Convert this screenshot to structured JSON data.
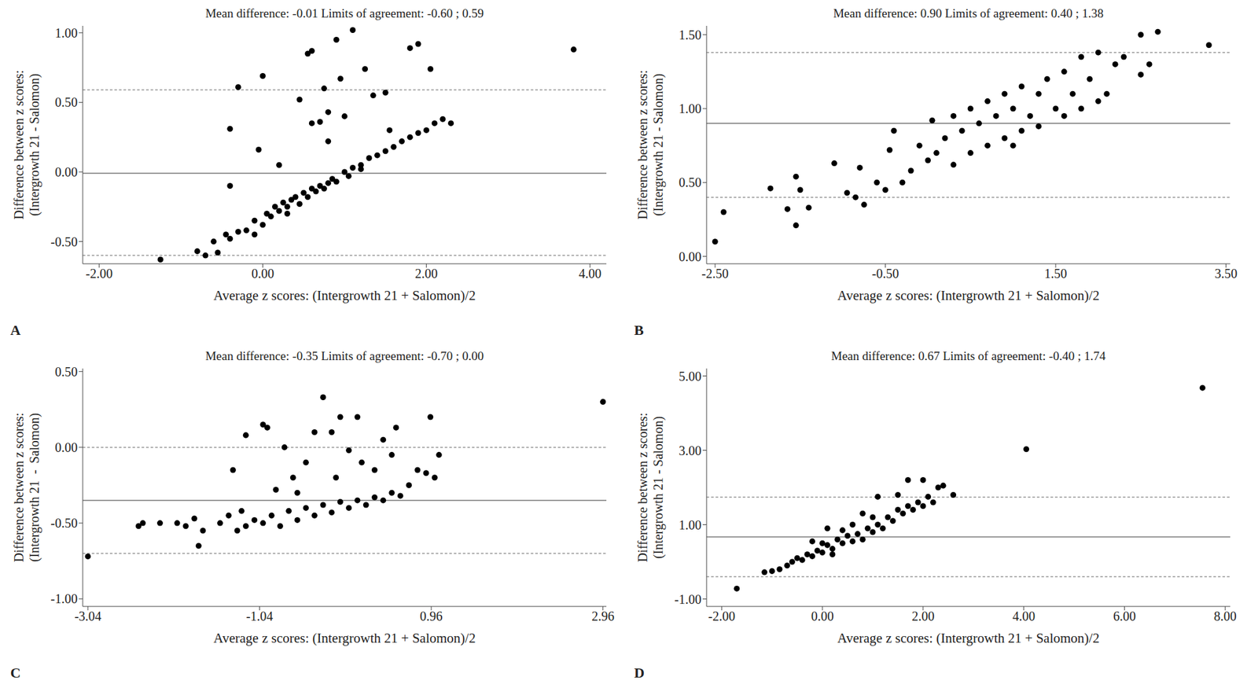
{
  "chart_data": [
    {
      "type": "scatter",
      "panel_label": "A",
      "title": "Mean difference: -0.01 Limits of agreement: -0.60 ; 0.59",
      "x_label": "Average z scores: (Intergrowth 21 + Salomon)/2",
      "y_label": [
        "Difference between z scores:",
        "(Intergrowth 21 - Salomon)"
      ],
      "mean_difference": -0.01,
      "limits_of_agreement": [
        -0.6,
        0.59
      ],
      "xlim": [
        -2.2,
        4.2
      ],
      "xticks": [
        {
          "value": -2,
          "label": "-2.00"
        },
        {
          "value": 0,
          "label": "0.00"
        },
        {
          "value": 2,
          "label": "2.00"
        },
        {
          "value": 4,
          "label": "4.00"
        }
      ],
      "ylim": [
        -0.66,
        1.05
      ],
      "yticks": [
        {
          "value": -0.5,
          "label": "-0.50"
        },
        {
          "value": 0,
          "label": "0.00"
        },
        {
          "value": 0.5,
          "label": "0.50"
        },
        {
          "value": 1,
          "label": "1.00"
        }
      ],
      "grid": false,
      "marker": "circle",
      "color": "#000000",
      "x": [
        -1.25,
        -0.8,
        -0.7,
        -0.6,
        -0.55,
        -0.45,
        -0.4,
        -0.3,
        -0.2,
        -0.1,
        0,
        0.05,
        0.1,
        0.15,
        0.2,
        0.25,
        0.3,
        0.35,
        0.4,
        0.45,
        0.5,
        0.55,
        0.6,
        0.65,
        0.7,
        0.75,
        0.8,
        0.85,
        0.9,
        1.0,
        1.05,
        1.1,
        1.2,
        1.3,
        1.4,
        1.5,
        1.6,
        1.7,
        1.8,
        1.9,
        2.0,
        2.1,
        2.2,
        2.3,
        1.2,
        0.3,
        -0.1,
        -0.4,
        -0.4,
        -0.3,
        -0.05,
        0.0,
        0.2,
        0.45,
        0.55,
        0.6,
        0.7,
        0.75,
        0.9,
        0.95,
        0.8,
        1.0,
        1.1,
        1.25,
        1.35,
        1.5,
        1.55,
        1.8,
        1.9,
        2.05,
        3.8,
        0.6,
        0.8
      ],
      "values": [
        -0.63,
        -0.57,
        -0.6,
        -0.5,
        -0.58,
        -0.45,
        -0.48,
        -0.43,
        -0.42,
        -0.35,
        -0.38,
        -0.3,
        -0.32,
        -0.25,
        -0.28,
        -0.22,
        -0.25,
        -0.2,
        -0.18,
        -0.23,
        -0.15,
        -0.18,
        -0.12,
        -0.14,
        -0.1,
        -0.12,
        -0.08,
        -0.05,
        -0.07,
        0.0,
        -0.03,
        0.03,
        0.05,
        0.1,
        0.12,
        0.15,
        0.18,
        0.22,
        0.25,
        0.28,
        0.3,
        0.35,
        0.38,
        0.35,
        0.02,
        -0.3,
        -0.45,
        -0.1,
        0.31,
        0.61,
        0.16,
        0.69,
        0.05,
        0.52,
        0.85,
        0.87,
        0.36,
        0.6,
        0.95,
        0.67,
        0.22,
        0.4,
        1.02,
        0.74,
        0.55,
        0.57,
        0.3,
        0.89,
        0.92,
        0.74,
        0.88,
        0.35,
        0.43
      ]
    },
    {
      "type": "scatter",
      "panel_label": "B",
      "title": "Mean difference: 0.90 Limits of agreement: 0.40 ; 1.38",
      "x_label": "Average  z scores: (Intergrowth 21 + Salomon)/2",
      "y_label": [
        "Difference between z scores:",
        "(Intergrowth 21 - Salomon)"
      ],
      "mean_difference": 0.9,
      "limits_of_agreement": [
        0.4,
        1.38
      ],
      "xlim": [
        -2.6,
        3.55
      ],
      "xticks": [
        {
          "value": -2.5,
          "label": "-2.50"
        },
        {
          "value": -0.5,
          "label": "-0.50"
        },
        {
          "value": 1.5,
          "label": "1.50"
        },
        {
          "value": 3.5,
          "label": "3.50"
        }
      ],
      "ylim": [
        -0.05,
        1.56
      ],
      "yticks": [
        {
          "value": 0,
          "label": "0.00"
        },
        {
          "value": 0.5,
          "label": "0.50"
        },
        {
          "value": 1,
          "label": "1.00"
        },
        {
          "value": 1.5,
          "label": "1.50"
        }
      ],
      "grid": false,
      "marker": "circle",
      "color": "#000000",
      "x": [
        -2.5,
        -2.4,
        -1.85,
        -1.65,
        -1.55,
        -1.55,
        -1.5,
        -1.4,
        -1.1,
        -0.95,
        -0.85,
        -0.8,
        -0.75,
        -0.6,
        -0.5,
        -0.45,
        -0.4,
        -0.3,
        -0.2,
        -0.1,
        0,
        0.05,
        0.1,
        0.2,
        0.3,
        0.3,
        0.4,
        0.5,
        0.5,
        0.6,
        0.7,
        0.7,
        0.8,
        0.9,
        0.9,
        1.0,
        1.1,
        1.1,
        1.2,
        1.3,
        1.3,
        1.4,
        1.5,
        1.6,
        1.6,
        1.7,
        1.8,
        1.8,
        1.9,
        2.0,
        2.1,
        2.2,
        2.3,
        2.5,
        2.6,
        2.7,
        2.5,
        3.3,
        2.0,
        1.0
      ],
      "values": [
        0.1,
        0.3,
        0.46,
        0.32,
        0.21,
        0.54,
        0.45,
        0.33,
        0.63,
        0.43,
        0.4,
        0.6,
        0.35,
        0.5,
        0.45,
        0.72,
        0.85,
        0.5,
        0.58,
        0.75,
        0.65,
        0.92,
        0.7,
        0.8,
        0.95,
        0.62,
        0.85,
        1.0,
        0.7,
        0.9,
        1.05,
        0.75,
        0.95,
        1.1,
        0.8,
        1.0,
        0.85,
        1.15,
        0.95,
        1.1,
        0.88,
        1.2,
        1.0,
        1.25,
        0.95,
        1.1,
        1.35,
        1.0,
        1.2,
        1.38,
        1.1,
        1.3,
        1.35,
        1.5,
        1.3,
        1.52,
        1.23,
        1.43,
        1.05,
        0.75
      ]
    },
    {
      "type": "scatter",
      "panel_label": "C",
      "title": "Mean difference: -0.35 Limits of agreement: -0.70 ; 0.00",
      "x_label": "Average z scores: (Intergrowth 21 + Salomon)/2",
      "y_label": [
        "Difference between z scores:",
        "(Intergrowth 21  -  Salomon)"
      ],
      "mean_difference": -0.35,
      "limits_of_agreement": [
        -0.7,
        0.0
      ],
      "xlim": [
        -3.1,
        3.0
      ],
      "xticks": [
        -3.04,
        -1.04,
        0.96,
        2.96
      ],
      "ylim": [
        -1.05,
        0.52
      ],
      "yticks": [
        {
          "value": -1,
          "label": "-1.00"
        },
        {
          "value": -0.5,
          "label": "-0.50"
        },
        {
          "value": 0,
          "label": "0.00"
        },
        {
          "value": 0.5,
          "label": "0.50"
        }
      ],
      "grid": false,
      "marker": "circle",
      "color": "#000000",
      "x": [
        -3.04,
        -2.45,
        -2.4,
        -2.2,
        -2.0,
        -1.9,
        -1.8,
        -1.75,
        -1.7,
        -1.5,
        -1.4,
        -1.3,
        -1.25,
        -1.2,
        -1.1,
        -1.0,
        -0.9,
        -0.8,
        -0.7,
        -0.6,
        -0.5,
        -0.4,
        -0.3,
        -0.2,
        -0.1,
        0,
        0.1,
        0.2,
        0.3,
        0.4,
        0.5,
        0.6,
        0.8,
        0.9,
        1.0,
        1.05,
        -1.35,
        -1.2,
        -1.0,
        -0.95,
        -0.85,
        -0.75,
        -0.65,
        -0.5,
        -0.4,
        -0.3,
        -0.2,
        -0.1,
        0.0,
        0.1,
        0.15,
        0.3,
        0.4,
        0.5,
        0.55,
        0.7,
        0.95,
        2.96,
        -0.6,
        -0.15
      ],
      "values": [
        -0.72,
        -0.52,
        -0.5,
        -0.5,
        -0.5,
        -0.52,
        -0.47,
        -0.65,
        -0.55,
        -0.5,
        -0.45,
        -0.55,
        -0.42,
        -0.52,
        -0.48,
        -0.5,
        -0.45,
        -0.52,
        -0.42,
        -0.48,
        -0.4,
        -0.45,
        -0.38,
        -0.43,
        -0.36,
        -0.4,
        -0.35,
        -0.38,
        -0.33,
        -0.35,
        -0.3,
        -0.32,
        -0.15,
        -0.17,
        -0.2,
        -0.05,
        -0.15,
        0.08,
        0.15,
        0.13,
        -0.28,
        0.0,
        -0.2,
        -0.1,
        0.1,
        0.33,
        0.1,
        0.2,
        -0.02,
        0.2,
        -0.1,
        -0.15,
        0.05,
        -0.05,
        0.13,
        -0.25,
        0.2,
        0.3,
        -0.3,
        -0.2
      ]
    },
    {
      "type": "scatter",
      "panel_label": "D",
      "title": "Mean difference: 0.67 Limits of agreement: -0.40 ; 1.74",
      "x_label": "Average  z scores: (Intergrowth 21 + Salomon)/2",
      "y_label": [
        "Difference between z scores:",
        "(Intergrowth 21 - Salomon)"
      ],
      "mean_difference": 0.67,
      "limits_of_agreement": [
        -0.4,
        1.74
      ],
      "xlim": [
        -2.3,
        8.1
      ],
      "xticks": [
        {
          "value": -2,
          "label": "-2.00"
        },
        {
          "value": 0,
          "label": "0.00"
        },
        {
          "value": 2,
          "label": "2.00"
        },
        {
          "value": 4,
          "label": "4.00"
        },
        {
          "value": 6,
          "label": "6.00"
        },
        {
          "value": 8,
          "label": "8.00"
        }
      ],
      "ylim": [
        -1.2,
        5.2
      ],
      "yticks": [
        {
          "value": -1,
          "label": "-1.00"
        },
        {
          "value": 1,
          "label": "1.00"
        },
        {
          "value": 3,
          "label": "3.00"
        },
        {
          "value": 5,
          "label": "5.00"
        }
      ],
      "grid": false,
      "marker": "circle",
      "color": "#000000",
      "x": [
        -1.7,
        -1.15,
        -1.0,
        -0.85,
        -0.7,
        -0.6,
        -0.5,
        -0.4,
        -0.3,
        -0.2,
        -0.1,
        -0.2,
        0,
        0.1,
        0.1,
        0.2,
        0.3,
        0.4,
        0.4,
        0.5,
        0.6,
        0.6,
        0.7,
        0.8,
        0.9,
        1.0,
        1.0,
        1.1,
        1.1,
        1.2,
        1.3,
        1.4,
        1.5,
        1.5,
        1.6,
        1.7,
        1.7,
        1.8,
        1.9,
        2.0,
        2.0,
        2.1,
        2.2,
        2.3,
        2.4,
        2.6,
        4.05,
        7.55,
        0.2,
        0.8,
        0.0
      ],
      "values": [
        -0.72,
        -0.28,
        -0.25,
        -0.2,
        -0.1,
        0.0,
        0.1,
        0.05,
        0.2,
        0.15,
        0.3,
        0.55,
        0.25,
        0.45,
        0.9,
        0.35,
        0.6,
        0.5,
        0.85,
        0.7,
        0.55,
        1.0,
        0.75,
        0.6,
        0.9,
        0.8,
        1.2,
        1.0,
        1.75,
        0.9,
        1.2,
        1.1,
        1.4,
        1.8,
        1.3,
        2.2,
        1.5,
        1.4,
        1.6,
        2.2,
        1.5,
        1.75,
        1.6,
        2.0,
        2.05,
        1.8,
        3.03,
        4.68,
        0.2,
        1.3,
        0.5
      ]
    }
  ]
}
